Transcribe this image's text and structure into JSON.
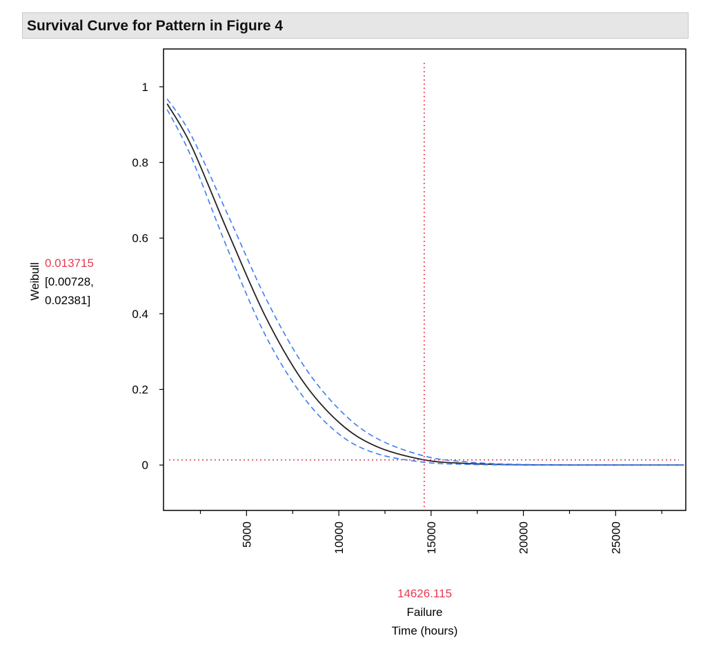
{
  "title": "Survival Curve for Pattern in Figure 4",
  "colors": {
    "fit_line": "#222222",
    "confidence_band": "#3b7cf0",
    "crosshair": "#e8384f",
    "title_bg": "#e6e6e6"
  },
  "chart_data": {
    "type": "line",
    "title": "Survival Curve for Pattern in Figure 4",
    "xlabel_lines": [
      "Failure",
      "Time (hours)"
    ],
    "ylabel": "Weibull",
    "xlim": [
      500,
      28800
    ],
    "ylim": [
      -0.12,
      1.1
    ],
    "x_ticks": [
      5000,
      10000,
      15000,
      20000,
      25000
    ],
    "x_tick_labels": [
      "5000",
      "10000",
      "15000",
      "20000",
      "25000"
    ],
    "y_ticks": [
      0,
      0.2,
      0.4,
      0.6,
      0.8,
      1
    ],
    "y_tick_labels": [
      "0",
      "0.2",
      "0.4",
      "0.6",
      "0.8",
      "1"
    ],
    "crosshair": {
      "x": 14626.115,
      "x_label": "14626.115",
      "y": 0.013715,
      "y_label": "0.013715",
      "y_ci_lines": [
        "[0.00728,",
        "0.02381]"
      ]
    },
    "series": [
      {
        "name": "Weibull survival",
        "x": [
          700,
          2000,
          4000,
          6000,
          8000,
          10000,
          12000,
          14626,
          17000,
          20000,
          25000,
          28700
        ],
        "values": [
          0.955,
          0.845,
          0.615,
          0.395,
          0.225,
          0.113,
          0.05,
          0.0137,
          0.004,
          0.0005,
          0.0,
          0.0
        ]
      },
      {
        "name": "Upper confidence limit",
        "x": [
          700,
          2000,
          4000,
          6000,
          8000,
          10000,
          12000,
          14626,
          17000,
          20000,
          25000,
          28700
        ],
        "values": [
          0.968,
          0.872,
          0.66,
          0.445,
          0.27,
          0.148,
          0.072,
          0.0238,
          0.008,
          0.0015,
          0.0001,
          0.0
        ]
      },
      {
        "name": "Lower confidence limit",
        "x": [
          700,
          2000,
          4000,
          6000,
          8000,
          10000,
          12000,
          14626,
          17000,
          20000,
          25000,
          28700
        ],
        "values": [
          0.94,
          0.815,
          0.568,
          0.345,
          0.185,
          0.082,
          0.031,
          0.0073,
          0.0018,
          0.0002,
          0.0,
          0.0
        ]
      }
    ]
  }
}
